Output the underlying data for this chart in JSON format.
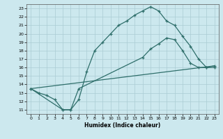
{
  "xlabel": "Humidex (Indice chaleur)",
  "bg_color": "#cce8ee",
  "line_color": "#2e6e6a",
  "grid_color": "#aaccd4",
  "x_ticks": [
    0,
    1,
    2,
    3,
    4,
    5,
    6,
    7,
    8,
    9,
    10,
    11,
    12,
    13,
    14,
    15,
    16,
    17,
    18,
    19,
    20,
    21,
    22,
    23
  ],
  "y_ticks": [
    11,
    12,
    13,
    14,
    15,
    16,
    17,
    18,
    19,
    20,
    21,
    22,
    23
  ],
  "xlim": [
    -0.5,
    23.5
  ],
  "ylim": [
    10.5,
    23.5
  ],
  "line1_x": [
    0,
    1,
    2,
    3,
    4,
    5,
    6,
    7,
    8,
    9,
    10,
    11,
    12,
    13,
    14,
    15,
    16,
    17,
    18,
    19,
    20,
    21,
    22,
    23
  ],
  "line1_y": [
    13.5,
    13.0,
    12.7,
    12.2,
    11.0,
    11.0,
    12.2,
    15.5,
    18.0,
    19.0,
    20.0,
    21.0,
    21.5,
    22.2,
    22.7,
    23.2,
    22.7,
    21.5,
    21.0,
    19.7,
    18.5,
    17.0,
    16.0,
    16.0
  ],
  "line2_x": [
    0,
    4,
    5,
    6,
    14,
    15,
    16,
    17,
    18,
    19,
    20,
    21,
    22,
    23
  ],
  "line2_y": [
    13.5,
    11.0,
    11.0,
    13.5,
    17.2,
    18.2,
    18.8,
    19.5,
    19.3,
    18.0,
    16.5,
    16.0,
    16.0,
    16.2
  ],
  "line3_x": [
    0,
    23
  ],
  "line3_y": [
    13.5,
    16.2
  ]
}
